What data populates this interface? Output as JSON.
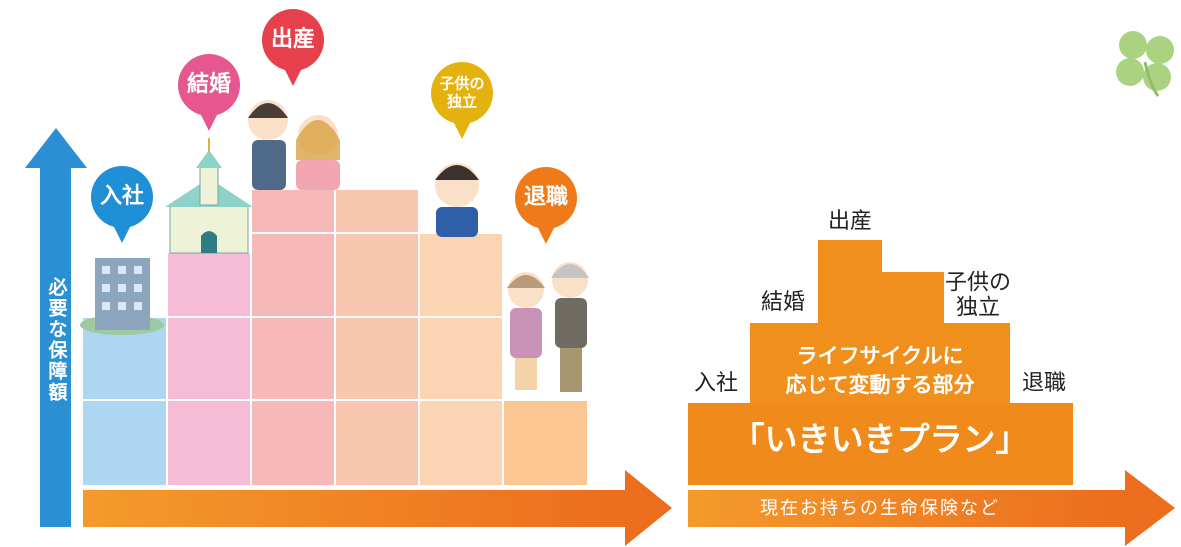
{
  "left_chart": {
    "axis_label": "必要な保障額",
    "balloons": [
      {
        "lines": [
          "入社"
        ]
      },
      {
        "lines": [
          "結婚"
        ]
      },
      {
        "lines": [
          "出産"
        ]
      },
      {
        "lines": [
          "子供の",
          "独立"
        ]
      },
      {
        "lines": [
          "退職"
        ]
      }
    ]
  },
  "right_chart": {
    "stages": [
      {
        "lines": [
          "入社"
        ]
      },
      {
        "lines": [
          "結婚"
        ]
      },
      {
        "lines": [
          "出産"
        ]
      },
      {
        "lines": [
          "子供の",
          "独立"
        ]
      },
      {
        "lines": [
          "退職"
        ]
      }
    ],
    "variable_part": [
      "ライフサイクルに",
      "応じて変動する部分"
    ],
    "plan_name": "「いきいきプラン」",
    "base_label": "現在お持ちの生命保険など"
  }
}
